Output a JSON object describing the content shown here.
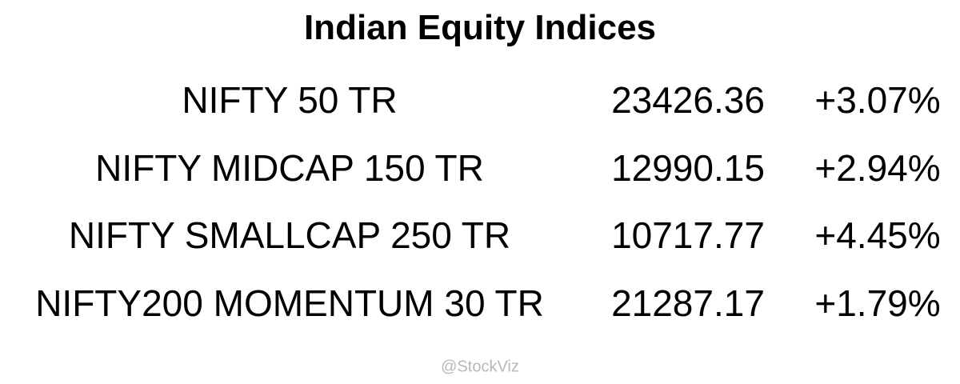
{
  "header": {
    "title": "Indian Equity Indices"
  },
  "table": {
    "rows": [
      [
        "NIFTY 50 TR",
        "23426.36",
        "+3.07%"
      ],
      [
        "NIFTY MIDCAP 150 TR",
        "12990.15",
        "+2.94%"
      ],
      [
        "NIFTY SMALLCAP 250 TR",
        "10717.77",
        "+4.45%"
      ],
      [
        "NIFTY200 MOMENTUM 30 TR",
        "21287.17",
        "+1.79%"
      ]
    ]
  },
  "footer": {
    "watermark": "@StockViz"
  }
}
